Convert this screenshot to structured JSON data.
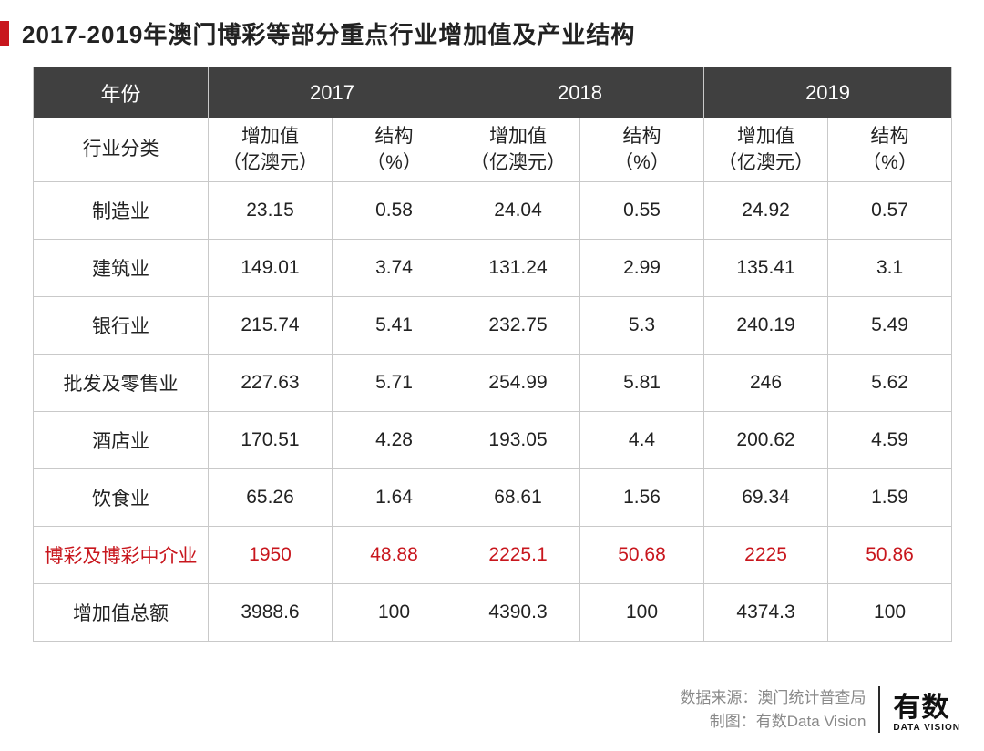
{
  "title": "2017-2019年澳门博彩等部分重点行业增加值及产业结构",
  "accent_color": "#c8161d",
  "header_bg": "#404040",
  "header_fg": "#ffffff",
  "border_color": "#c9c9c9",
  "highlight_color": "#c8161d",
  "table": {
    "year_header_label": "年份",
    "years": [
      "2017",
      "2018",
      "2019"
    ],
    "category_header_label": "行业分类",
    "sub_headers": {
      "value_top": "增加值",
      "value_bottom": "（亿澳元）",
      "pct_top": "结构",
      "pct_bottom": "（%）"
    },
    "rows": [
      {
        "label": "制造业",
        "v2017": "23.15",
        "p2017": "0.58",
        "v2018": "24.04",
        "p2018": "0.55",
        "v2019": "24.92",
        "p2019": "0.57",
        "highlight": false
      },
      {
        "label": "建筑业",
        "v2017": "149.01",
        "p2017": "3.74",
        "v2018": "131.24",
        "p2018": "2.99",
        "v2019": "135.41",
        "p2019": "3.1",
        "highlight": false
      },
      {
        "label": "银行业",
        "v2017": "215.74",
        "p2017": "5.41",
        "v2018": "232.75",
        "p2018": "5.3",
        "v2019": "240.19",
        "p2019": "5.49",
        "highlight": false
      },
      {
        "label": "批发及零售业",
        "v2017": "227.63",
        "p2017": "5.71",
        "v2018": "254.99",
        "p2018": "5.81",
        "v2019": "246",
        "p2019": "5.62",
        "highlight": false
      },
      {
        "label": "酒店业",
        "v2017": "170.51",
        "p2017": "4.28",
        "v2018": "193.05",
        "p2018": "4.4",
        "v2019": "200.62",
        "p2019": "4.59",
        "highlight": false
      },
      {
        "label": "饮食业",
        "v2017": "65.26",
        "p2017": "1.64",
        "v2018": "68.61",
        "p2018": "1.56",
        "v2019": "69.34",
        "p2019": "1.59",
        "highlight": false
      },
      {
        "label": "博彩及博彩中介业",
        "v2017": "1950",
        "p2017": "48.88",
        "v2018": "2225.1",
        "p2018": "50.68",
        "v2019": "2225",
        "p2019": "50.86",
        "highlight": true
      },
      {
        "label": "增加值总额",
        "v2017": "3988.6",
        "p2017": "100",
        "v2018": "4390.3",
        "p2018": "100",
        "v2019": "4374.3",
        "p2019": "100",
        "highlight": false
      }
    ]
  },
  "footer": {
    "source_label": "数据来源：",
    "source_value": "澳门统计普查局",
    "credit_label": "制图：",
    "credit_value": "有数Data Vision",
    "logo_cn": "有数",
    "logo_en": "DATA VISION"
  }
}
